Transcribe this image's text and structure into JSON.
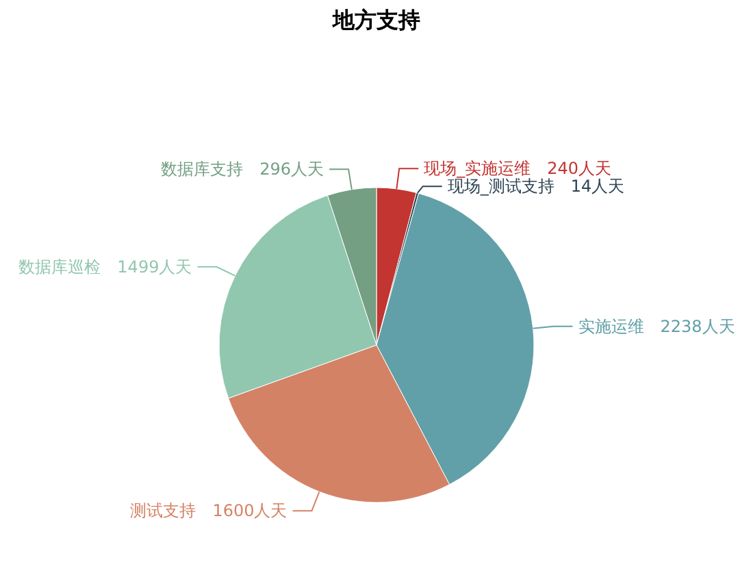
{
  "chart_data": {
    "type": "pie",
    "title": "地方支持",
    "categories": [
      "现场_实施运维",
      "现场_测试支持",
      "实施运维",
      "测试支持",
      "数据库巡检",
      "数据库支持"
    ],
    "values": [
      240,
      14,
      2238,
      1600,
      1499,
      296
    ],
    "value_labels": [
      "240人天",
      "14人天",
      "2238人天",
      "1600人天",
      "1499人天",
      "296人天"
    ],
    "colors": [
      "#c23531",
      "#2f4554",
      "#61a0a8",
      "#d48265",
      "#91c7ae",
      "#749f83"
    ]
  }
}
